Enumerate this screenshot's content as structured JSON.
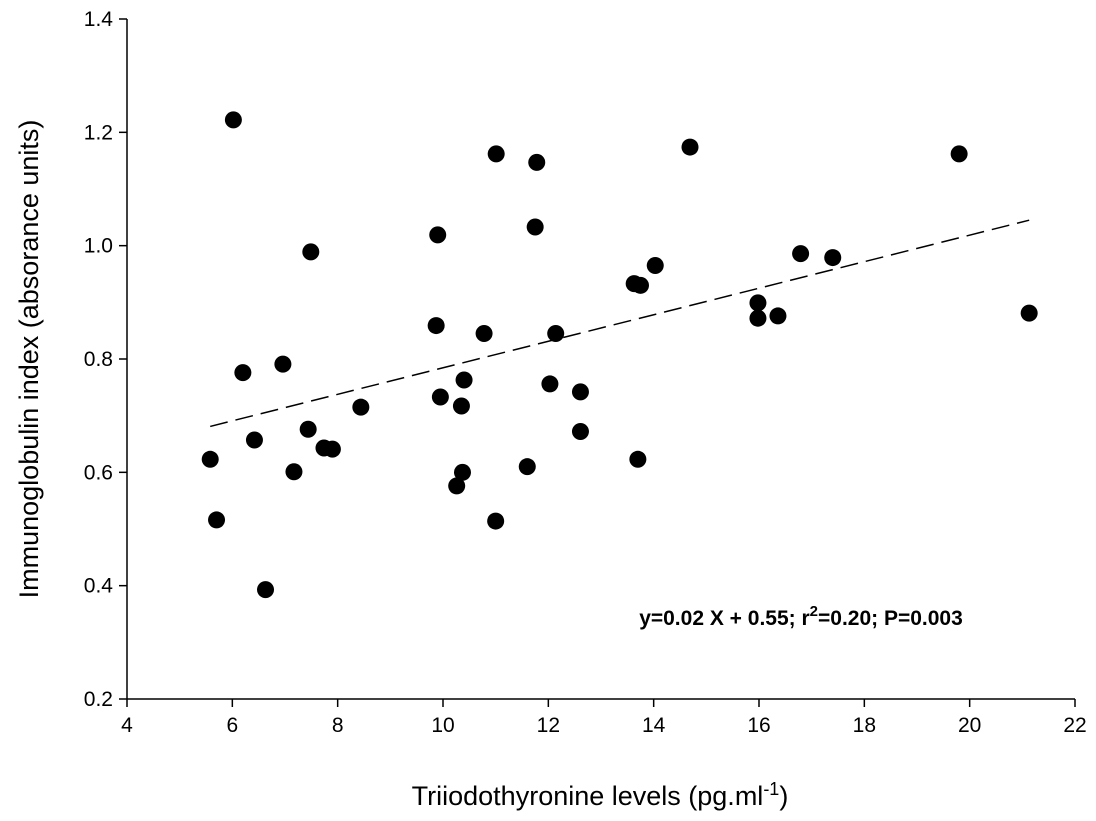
{
  "chart_data": {
    "type": "scatter",
    "xlabel": "Triiodothyronine levels (pg.ml",
    "xlabel_sup": "-1",
    "xlabel_end": ")",
    "ylabel": "Immunoglobulin index (absorance units)",
    "xlim": [
      4,
      22
    ],
    "ylim": [
      0.2,
      1.4
    ],
    "x_ticks": [
      "4",
      "6",
      "8",
      "10",
      "12",
      "14",
      "16",
      "18",
      "20",
      "22"
    ],
    "y_ticks": [
      "0.2",
      "0.4",
      "0.6",
      "0.8",
      "1.0",
      "1.2",
      "1.4"
    ],
    "grid": false,
    "points": [
      {
        "x": 5.58,
        "y": 0.623
      },
      {
        "x": 5.7,
        "y": 0.516
      },
      {
        "x": 6.02,
        "y": 1.222
      },
      {
        "x": 6.2,
        "y": 0.776
      },
      {
        "x": 6.42,
        "y": 0.657
      },
      {
        "x": 6.63,
        "y": 0.393
      },
      {
        "x": 6.96,
        "y": 0.791
      },
      {
        "x": 7.17,
        "y": 0.601
      },
      {
        "x": 7.44,
        "y": 0.676
      },
      {
        "x": 7.49,
        "y": 0.989
      },
      {
        "x": 7.74,
        "y": 0.643
      },
      {
        "x": 7.9,
        "y": 0.641
      },
      {
        "x": 8.44,
        "y": 0.715
      },
      {
        "x": 9.87,
        "y": 0.859
      },
      {
        "x": 9.9,
        "y": 1.019
      },
      {
        "x": 9.95,
        "y": 0.733
      },
      {
        "x": 10.26,
        "y": 0.576
      },
      {
        "x": 10.35,
        "y": 0.717
      },
      {
        "x": 10.37,
        "y": 0.6
      },
      {
        "x": 10.4,
        "y": 0.763
      },
      {
        "x": 10.78,
        "y": 0.845
      },
      {
        "x": 11.01,
        "y": 1.162
      },
      {
        "x": 11.0,
        "y": 0.514
      },
      {
        "x": 11.6,
        "y": 0.61
      },
      {
        "x": 11.75,
        "y": 1.033
      },
      {
        "x": 11.78,
        "y": 1.147
      },
      {
        "x": 12.03,
        "y": 0.756
      },
      {
        "x": 12.14,
        "y": 0.845
      },
      {
        "x": 12.61,
        "y": 0.742
      },
      {
        "x": 12.61,
        "y": 0.672
      },
      {
        "x": 13.63,
        "y": 0.933
      },
      {
        "x": 13.7,
        "y": 0.623
      },
      {
        "x": 13.75,
        "y": 0.93
      },
      {
        "x": 14.03,
        "y": 0.965
      },
      {
        "x": 14.69,
        "y": 1.174
      },
      {
        "x": 15.98,
        "y": 0.899
      },
      {
        "x": 15.98,
        "y": 0.872
      },
      {
        "x": 16.36,
        "y": 0.876
      },
      {
        "x": 16.79,
        "y": 0.986
      },
      {
        "x": 17.4,
        "y": 0.979
      },
      {
        "x": 19.8,
        "y": 1.162
      },
      {
        "x": 21.13,
        "y": 0.881
      }
    ],
    "fit_line": {
      "x": [
        5.58,
        21.13
      ],
      "y": [
        0.681,
        1.045
      ],
      "style": "dashed"
    },
    "annotation": {
      "part1": "y=0.02 X + 0.55; r",
      "sup": "2",
      "part2": "=0.20; P=0.003"
    }
  }
}
